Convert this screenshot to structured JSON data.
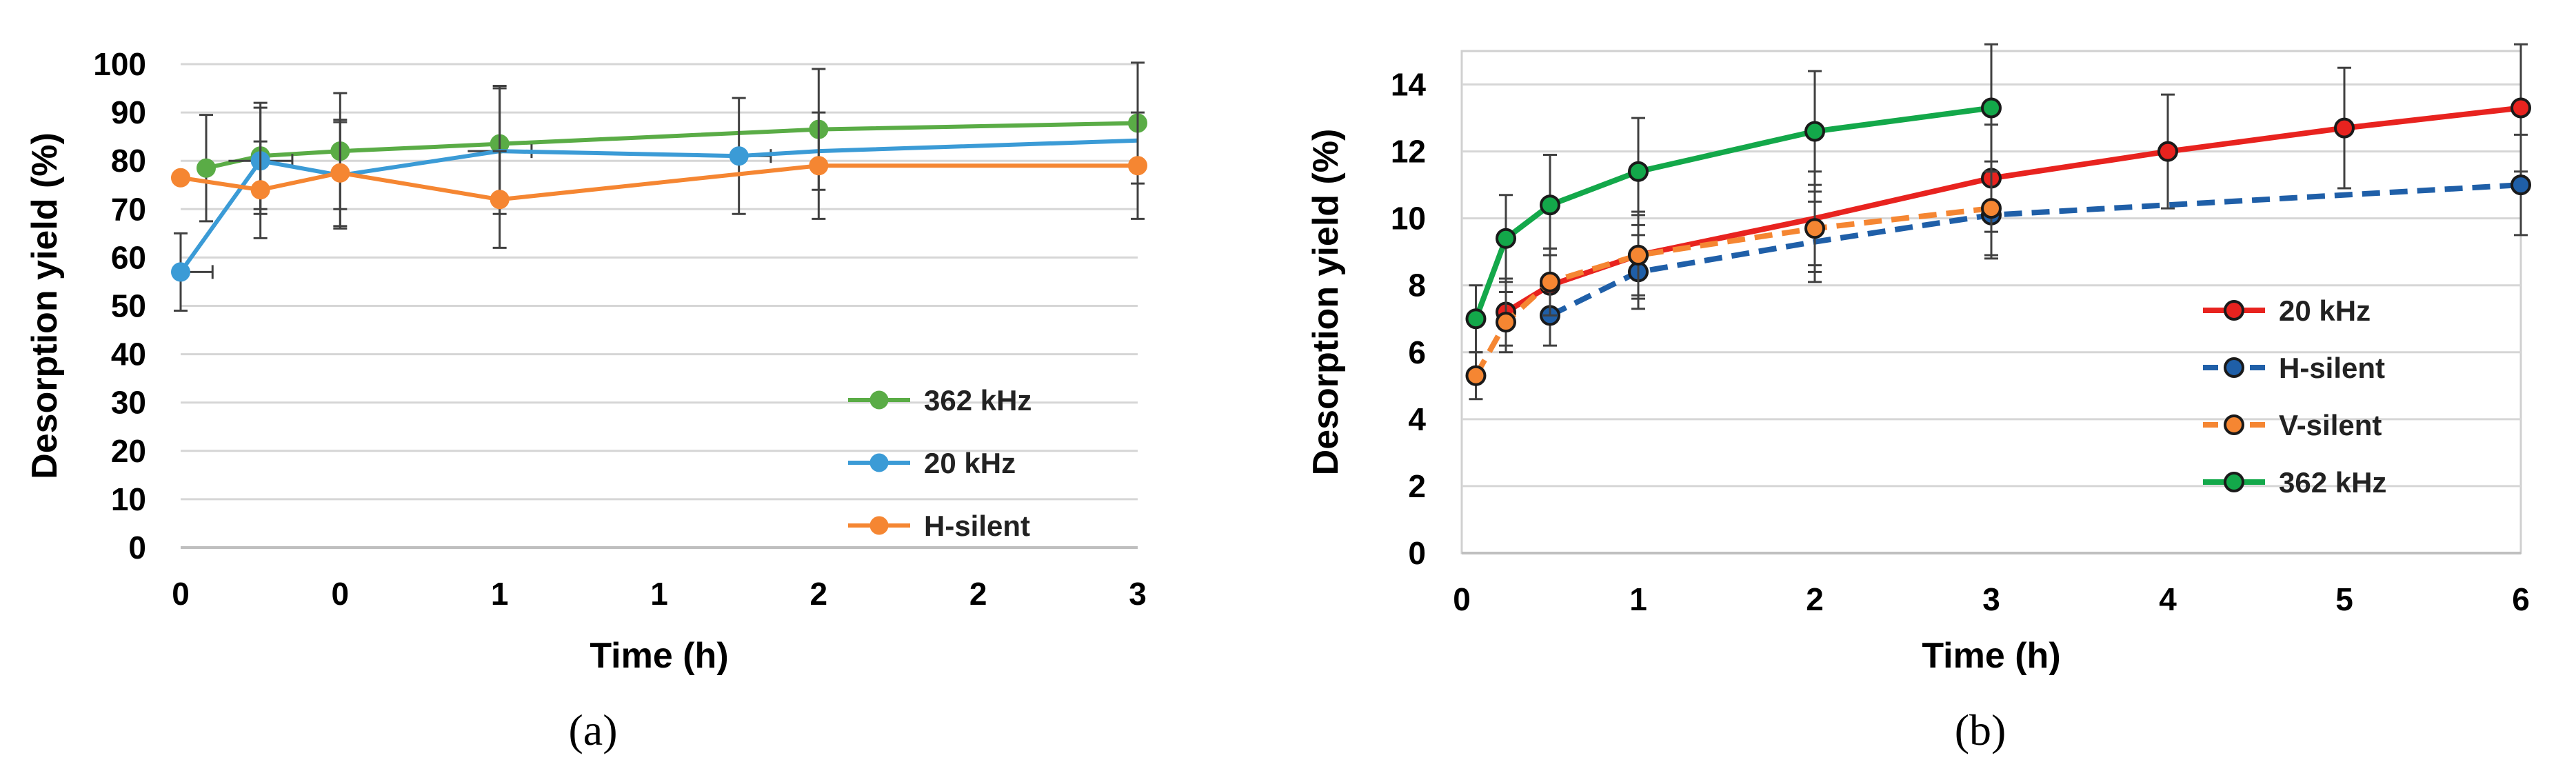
{
  "chart_data": [
    {
      "type": "line",
      "caption": "(a)",
      "xlabel": "Time (h)",
      "ylabel": "Desorption yield (%)",
      "xlim": [
        0,
        3
      ],
      "ylim": [
        0,
        100
      ],
      "xticks": [
        0,
        0.5,
        1,
        1.5,
        2,
        2.5,
        3
      ],
      "xtick_labels": [
        "0",
        "0",
        "1",
        "1",
        "2",
        "2",
        "3"
      ],
      "yticks": [
        0,
        10,
        20,
        30,
        40,
        50,
        60,
        70,
        80,
        90,
        100
      ],
      "ytick_labels": [
        "0",
        "10",
        "20",
        "30",
        "40",
        "50",
        "60",
        "70",
        "80",
        "90",
        "100"
      ],
      "grid": "horizontal",
      "legend_position": "bottom-right",
      "series": [
        {
          "name": "362 kHz",
          "color": "#5aac46",
          "dashed": false,
          "x": [
            0.08,
            0.25,
            0.5,
            1.0,
            2.0,
            3.0
          ],
          "y": [
            78.5,
            81,
            82,
            83.5,
            86.5,
            87.8
          ],
          "err": [
            11,
            11,
            12,
            12,
            12.5,
            12.5
          ],
          "markers": [
            true,
            true,
            true,
            true,
            true,
            true
          ],
          "xerr": [
            0,
            0,
            0,
            0,
            0,
            0
          ]
        },
        {
          "name": "20 kHz",
          "color": "#3b9bd6",
          "dashed": false,
          "x": [
            0,
            0.25,
            0.5,
            1.0,
            1.75,
            2.0,
            3.0
          ],
          "y": [
            57,
            80,
            77,
            82,
            81,
            82,
            84.2
          ],
          "err": [
            8,
            11,
            11,
            13,
            12,
            0,
            0
          ],
          "markers": [
            true,
            true,
            false,
            false,
            true,
            false,
            false
          ],
          "xerr": [
            0.1,
            0.1,
            0,
            0.1,
            0.1,
            0,
            0
          ]
        },
        {
          "name": "H-silent",
          "color": "#f58632",
          "dashed": false,
          "x": [
            0,
            0.25,
            0.5,
            1.0,
            2.0,
            3.0
          ],
          "y": [
            76.5,
            74,
            77.5,
            72,
            79,
            79
          ],
          "err": [
            0,
            10,
            11,
            10,
            11,
            11
          ],
          "markers": [
            true,
            true,
            true,
            true,
            true,
            true
          ],
          "xerr": [
            0,
            0,
            0,
            0,
            0,
            0
          ]
        }
      ]
    },
    {
      "type": "line",
      "caption": "(b)",
      "xlabel": "Time (h)",
      "ylabel": "Desorption yield (%)",
      "xlim": [
        0,
        6
      ],
      "ylim": [
        0,
        15
      ],
      "xticks": [
        0,
        1,
        2,
        3,
        4,
        5,
        6
      ],
      "xtick_labels": [
        "0",
        "1",
        "2",
        "3",
        "4",
        "5",
        "6"
      ],
      "yticks": [
        0,
        2,
        4,
        6,
        8,
        10,
        12,
        14
      ],
      "ytick_labels": [
        "0",
        "2",
        "4",
        "6",
        "8",
        "10",
        "12",
        "14"
      ],
      "grid": "horizontal",
      "legend_position": "bottom-right",
      "series": [
        {
          "name": "20 kHz",
          "color": "#e8231f",
          "dashed": false,
          "x": [
            0.25,
            0.5,
            1,
            2,
            3,
            4,
            5,
            6
          ],
          "y": [
            7.2,
            8.0,
            8.9,
            10.0,
            11.2,
            12.0,
            12.7,
            13.3
          ],
          "err": [
            1.0,
            1.1,
            1.3,
            1.4,
            1.6,
            1.7,
            1.8,
            1.9
          ],
          "markers": [
            true,
            true,
            true,
            false,
            true,
            true,
            true,
            true
          ],
          "xerr": [
            0,
            0,
            0,
            0,
            0,
            0,
            0,
            0
          ]
        },
        {
          "name": "H-silent",
          "color": "#1f5fa8",
          "dashed": true,
          "x": [
            0.5,
            1,
            2,
            3,
            6
          ],
          "y": [
            7.1,
            8.4,
            9.3,
            10.1,
            11.0
          ],
          "err": [
            0.9,
            1.1,
            1.2,
            1.3,
            1.5
          ],
          "markers": [
            true,
            true,
            false,
            true,
            true
          ],
          "xerr": [
            0,
            0,
            0,
            0,
            0
          ]
        },
        {
          "name": "V-silent",
          "color": "#f58632",
          "dashed": true,
          "x": [
            0.08,
            0.25,
            0.5,
            1,
            2,
            3
          ],
          "y": [
            5.3,
            6.9,
            8.1,
            8.9,
            9.7,
            10.3
          ],
          "err": [
            0.7,
            0.9,
            1.0,
            1.2,
            1.3,
            1.4
          ],
          "markers": [
            true,
            true,
            true,
            true,
            true,
            true
          ],
          "xerr": [
            0,
            0,
            0,
            0,
            0,
            0
          ]
        },
        {
          "name": "362 kHz",
          "color": "#13a84a",
          "dashed": false,
          "x": [
            0.08,
            0.25,
            0.5,
            1,
            2,
            3
          ],
          "y": [
            7.0,
            9.4,
            10.4,
            11.4,
            12.6,
            13.3
          ],
          "err": [
            1.0,
            1.3,
            1.5,
            1.6,
            1.8,
            1.9
          ],
          "markers": [
            true,
            true,
            true,
            true,
            true,
            true
          ],
          "xerr": [
            0,
            0,
            0,
            0,
            0,
            0
          ]
        }
      ]
    }
  ]
}
